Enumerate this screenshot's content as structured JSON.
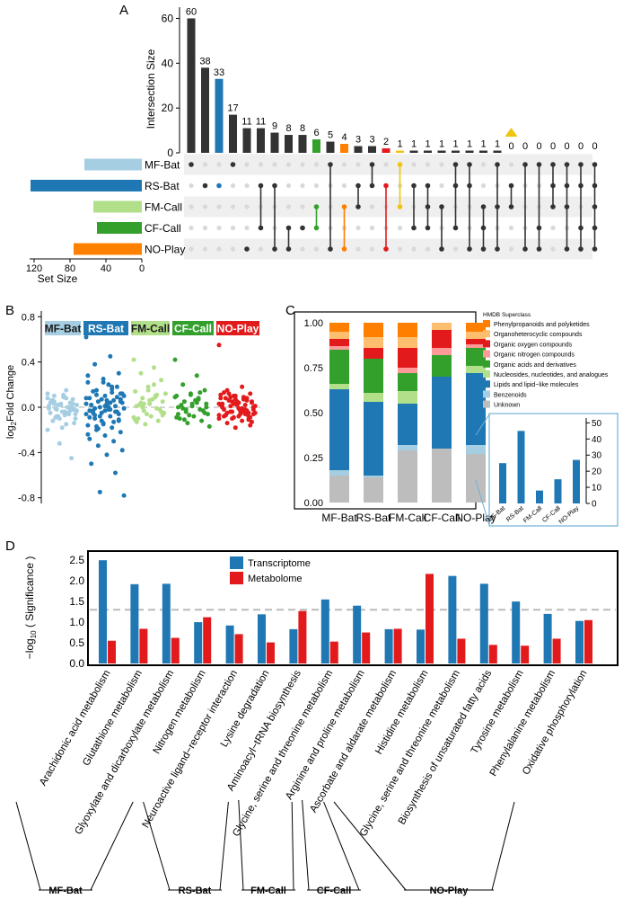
{
  "panels": {
    "a": "A",
    "b": "B",
    "c": "C",
    "d": "D"
  },
  "colors": {
    "bar_dark": "#333333",
    "mf_bat": "#a6cee3",
    "rs_bat": "#1f78b4",
    "fm_call": "#b2df8a",
    "cf_call": "#33a02c",
    "no_play": "#ff7f00",
    "highlight_red": "#e31a1c",
    "highlight_yellow": "#f1c40f",
    "dot_inactive": "#d9d9d9",
    "row_shade": "#efefef",
    "transcriptome": "#1f78b4",
    "metabolome": "#e31a1c",
    "threshold": "#bbbbbb"
  },
  "chart_data": [
    {
      "id": "upset",
      "type": "bar",
      "ylabel": "Intersection Size",
      "ylim": [
        0,
        65
      ],
      "yticks": [
        0,
        20,
        40,
        60
      ],
      "values": [
        60,
        38,
        33,
        17,
        11,
        11,
        9,
        8,
        8,
        6,
        5,
        4,
        3,
        3,
        2,
        1,
        1,
        1,
        1,
        1,
        1,
        1,
        1,
        0,
        0,
        0,
        0,
        0,
        0,
        0
      ],
      "value_labels": [
        "60",
        "38",
        "33",
        "17",
        "11",
        "11",
        "9",
        "8",
        "8",
        "6",
        "5",
        "4",
        "3",
        "3",
        "2",
        "1",
        "1",
        "1",
        "1",
        "1",
        "1",
        "1",
        "1",
        "0",
        "0",
        "0",
        "0",
        "0",
        "0",
        "0"
      ],
      "bar_colors": [
        "dark",
        "dark",
        "rs_bat",
        "dark",
        "dark",
        "dark",
        "dark",
        "dark",
        "dark",
        "cf_call",
        "dark",
        "no_play",
        "dark",
        "dark",
        "highlight_red",
        "highlight_yellow",
        "dark",
        "dark",
        "dark",
        "dark",
        "dark",
        "dark",
        "dark",
        "dark",
        "dark",
        "dark",
        "dark",
        "dark",
        "dark",
        "dark"
      ],
      "marker_index": 23,
      "sets": [
        "MF-Bat",
        "RS-Bat",
        "FM-Call",
        "CF-Call",
        "NO-Play"
      ],
      "set_sizes": [
        64,
        124,
        54,
        50,
        76
      ],
      "set_size_label": "Set Size",
      "set_size_ticks": [
        120,
        80,
        40,
        0
      ],
      "set_size_tick_labels": [
        "120",
        "80",
        "40",
        "0"
      ],
      "set_size_max": 130,
      "matrix": [
        [
          0
        ],
        [
          1
        ],
        [
          1
        ],
        [
          0
        ],
        [
          4
        ],
        [
          1,
          3
        ],
        [
          1,
          4
        ],
        [
          3,
          4
        ],
        [
          3
        ],
        [
          2,
          3
        ],
        [
          0,
          4
        ],
        [
          2,
          4
        ],
        [
          1,
          2
        ],
        [
          0,
          1
        ],
        [
          1,
          4
        ],
        [
          0,
          2
        ],
        [
          1,
          3
        ],
        [
          1,
          2,
          3
        ],
        [
          2,
          4
        ],
        [
          0,
          1,
          3
        ],
        [
          0,
          1,
          4
        ],
        [
          2,
          3,
          4
        ],
        [
          0,
          2,
          4
        ],
        [
          1,
          2
        ],
        [
          0,
          4
        ],
        [
          0,
          3,
          4
        ],
        [
          0,
          1,
          2
        ],
        [
          0,
          1,
          2,
          4
        ],
        [
          0,
          1,
          3,
          4
        ],
        [
          0,
          1,
          2,
          3,
          4
        ]
      ]
    },
    {
      "id": "foldchange",
      "type": "scatter",
      "ylabel": "log2 Fold Change",
      "ylim": [
        -0.85,
        0.85
      ],
      "yticks": [
        -0.8,
        -0.4,
        0.0,
        0.4,
        0.8
      ],
      "ytick_labels": [
        "-0.8",
        "-0.4",
        "0.0",
        "0.4",
        "0.8"
      ],
      "groups": [
        {
          "name": "MF-Bat",
          "color": "mf_bat",
          "values": [
            0.12,
            0.08,
            0.05,
            0.03,
            0.02,
            0.01,
            0.0,
            -0.01,
            -0.02,
            -0.04,
            -0.05,
            -0.06,
            -0.08,
            -0.1,
            0.09,
            0.06,
            0.04,
            0.02,
            -0.03,
            -0.07,
            -0.12,
            -0.45,
            -0.32,
            -0.2,
            0.15,
            0.1,
            0.07,
            0.03,
            -0.01,
            -0.05,
            -0.09,
            -0.14,
            -0.18,
            0.04,
            0.0,
            -0.02,
            -0.06,
            0.11,
            0.05,
            -0.03,
            -0.08,
            0.02,
            -0.04,
            0.06,
            0.0,
            -0.1,
            0.08,
            -0.15,
            0.03,
            -0.02
          ]
        },
        {
          "name": "RS-Bat",
          "color": "rs_bat",
          "values": [
            0.62,
            0.45,
            0.38,
            0.3,
            0.25,
            0.22,
            0.18,
            0.15,
            0.12,
            0.1,
            0.08,
            0.06,
            0.05,
            0.04,
            0.03,
            0.02,
            0.01,
            0.0,
            -0.01,
            -0.02,
            -0.03,
            -0.04,
            -0.05,
            -0.06,
            -0.08,
            -0.1,
            -0.12,
            -0.14,
            -0.16,
            -0.18,
            -0.2,
            -0.22,
            -0.25,
            -0.28,
            -0.3,
            -0.34,
            -0.38,
            -0.42,
            -0.5,
            -0.58,
            -0.75,
            -0.78,
            0.2,
            0.14,
            0.09,
            0.07,
            0.03,
            -0.02,
            -0.07,
            -0.11,
            -0.15,
            0.28,
            0.16,
            0.11,
            0.05,
            -0.03,
            -0.09,
            -0.13,
            -0.19,
            0.12,
            0.06,
            0.02,
            -0.04,
            -0.08,
            0.1,
            0.0,
            -0.05,
            0.18,
            -0.12,
            0.08,
            0.04,
            -0.01,
            -0.06,
            0.22,
            -0.24,
            0.13,
            -0.17,
            0.07,
            0.01,
            -0.03
          ]
        },
        {
          "name": "FM-Call",
          "color": "fm_call",
          "values": [
            0.42,
            0.35,
            0.3,
            0.24,
            0.18,
            0.14,
            0.1,
            0.08,
            0.05,
            0.03,
            0.01,
            -0.01,
            -0.03,
            -0.05,
            -0.08,
            -0.1,
            -0.12,
            -0.15,
            0.12,
            0.07,
            0.02,
            -0.02,
            -0.06,
            -0.09,
            0.2,
            0.04,
            -0.04,
            0.15,
            -0.11,
            0.09,
            0.0,
            -0.07,
            0.06,
            -0.13,
            0.11,
            0.03
          ]
        },
        {
          "name": "CF-Call",
          "color": "cf_call",
          "values": [
            0.42,
            0.28,
            0.2,
            0.15,
            0.12,
            0.1,
            0.08,
            0.05,
            0.03,
            0.01,
            0.0,
            -0.02,
            -0.04,
            -0.06,
            -0.08,
            -0.1,
            -0.12,
            -0.14,
            -0.17,
            0.06,
            0.02,
            -0.03,
            -0.07,
            0.09,
            0.04,
            -0.01,
            -0.05,
            0.11,
            -0.09,
            0.07,
            -0.11,
            0.0,
            0.03,
            -0.06,
            0.13,
            -0.02
          ]
        },
        {
          "name": "NO-Play",
          "color": "highlight_red",
          "values": [
            0.55,
            0.18,
            0.15,
            0.12,
            0.1,
            0.08,
            0.07,
            0.06,
            0.05,
            0.04,
            0.03,
            0.02,
            0.01,
            0.0,
            -0.01,
            -0.02,
            -0.03,
            -0.04,
            -0.05,
            -0.06,
            -0.07,
            -0.08,
            -0.09,
            -0.1,
            -0.12,
            -0.14,
            -0.16,
            -0.18,
            0.11,
            0.09,
            0.06,
            0.04,
            0.02,
            0.0,
            -0.02,
            -0.04,
            -0.06,
            -0.08,
            0.13,
            0.08,
            0.05,
            0.01,
            -0.03,
            -0.07,
            -0.11,
            0.1,
            0.03,
            -0.01,
            -0.05,
            -0.09,
            0.07,
            0.02,
            -0.04,
            0.12,
            -0.13,
            0.05,
            0.0,
            -0.06,
            0.09,
            -0.02,
            0.04,
            -0.08,
            0.06,
            -0.1,
            0.01,
            -0.03,
            0.08,
            -0.05,
            0.03,
            -0.07
          ]
        }
      ]
    },
    {
      "id": "superclass",
      "type": "bar",
      "stacked": true,
      "categories": [
        "MF-Bat",
        "RS-Bat",
        "FM-Call",
        "CF-Call",
        "NO-Play"
      ],
      "ylim": [
        0,
        1
      ],
      "yticks": [
        0,
        0.25,
        0.5,
        0.75,
        1.0
      ],
      "ytick_labels": [
        "0.00",
        "0.25",
        "0.50",
        "0.75",
        "1.00"
      ],
      "legend_title": "HMDB Superclass",
      "series": [
        {
          "name": "Unknown",
          "color": "#bdbdbd",
          "values": [
            0.15,
            0.14,
            0.29,
            0.3,
            0.27
          ]
        },
        {
          "name": "Benzenoids",
          "color": "#a6cee3",
          "values": [
            0.03,
            0.01,
            0.03,
            0.0,
            0.05
          ]
        },
        {
          "name": "Lipids and lipid−like molecules",
          "color": "#1f78b4",
          "values": [
            0.45,
            0.41,
            0.23,
            0.4,
            0.4
          ]
        },
        {
          "name": "Nucleosides, nucleotides, and analogues",
          "color": "#b2df8a",
          "values": [
            0.03,
            0.05,
            0.07,
            0.0,
            0.04
          ]
        },
        {
          "name": "Organic acids and derivatives",
          "color": "#33a02c",
          "values": [
            0.19,
            0.19,
            0.1,
            0.12,
            0.1
          ]
        },
        {
          "name": "Organic nitrogen compounds",
          "color": "#fb9a99",
          "values": [
            0.02,
            0.0,
            0.03,
            0.04,
            0.02
          ]
        },
        {
          "name": "Organic oxygen compounds",
          "color": "#e31a1c",
          "values": [
            0.04,
            0.06,
            0.11,
            0.1,
            0.03
          ]
        },
        {
          "name": "Organoheterocyclic compounds",
          "color": "#fdbf6f",
          "values": [
            0.04,
            0.06,
            0.06,
            0.04,
            0.04
          ]
        },
        {
          "name": "Phenylpropanoids and polyketides",
          "color": "#ff7f00",
          "values": [
            0.05,
            0.08,
            0.08,
            0.0,
            0.05
          ]
        }
      ],
      "legend_order": [
        "Phenylpropanoids and polyketides",
        "Organoheterocyclic compounds",
        "Organic oxygen compounds",
        "Organic nitrogen compounds",
        "Organic acids and derivatives",
        "Nucleosides, nucleotides, and analogues",
        "Lipids and lipid−like molecules",
        "Benzenoids",
        "Unknown"
      ]
    },
    {
      "id": "inset",
      "type": "bar",
      "categories": [
        "MF-Bat",
        "RS-Bat",
        "FM-Call",
        "CF-Call",
        "NO-Play"
      ],
      "values": [
        25,
        45,
        8,
        15,
        27
      ],
      "ylim": [
        0,
        53
      ],
      "yticks": [
        0,
        10,
        20,
        30,
        40,
        50
      ],
      "ytick_labels": [
        "0",
        "10",
        "20",
        "30",
        "40",
        "50"
      ],
      "color": "#1f78b4"
    },
    {
      "id": "pathway",
      "type": "bar",
      "ylabel": "−log10 ( Significance )",
      "ylim": [
        0,
        2.7
      ],
      "yticks": [
        0.0,
        0.5,
        1.0,
        1.5,
        2.0,
        2.5
      ],
      "ytick_labels": [
        "0.0",
        "0.5",
        "1.0",
        "1.5",
        "2.0",
        "2.5"
      ],
      "threshold": 1.3,
      "categories": [
        "Arachidonic acid metabolism",
        "Glutathione metabolism",
        "Glyoxylate and dicarboxylate metabolism",
        "Nitrogen metabolism",
        "Neuroactive ligand−receptor interaction",
        "Lysine degradation",
        "Aminoacyl−tRNA biosynthesis",
        "Glycine, serine and threonine metabolism",
        "Arginine and proline metabolism",
        "Ascorbate and aldarate metabolism",
        "Histidine metabolism",
        "Glycine, serine and threonine metabolism",
        "Biosynthesis of unsaturated fatty acids",
        "Tyrosine metabolism",
        "Phenylalanine metabolism",
        "Oxidative phosphorylation"
      ],
      "series": [
        {
          "name": "Transcriptome",
          "color": "transcriptome",
          "values": [
            2.5,
            1.92,
            1.93,
            1.0,
            0.92,
            1.19,
            0.83,
            1.55,
            1.4,
            0.83,
            0.82,
            2.12,
            1.93,
            1.5,
            1.2,
            1.03
          ]
        },
        {
          "name": "Metabolome",
          "color": "metabolome",
          "values": [
            0.55,
            0.84,
            0.62,
            1.12,
            0.71,
            0.51,
            1.27,
            0.53,
            0.75,
            0.84,
            2.17,
            0.6,
            0.45,
            0.43,
            0.6,
            1.05
          ]
        }
      ],
      "groups": [
        {
          "name": "MF-Bat",
          "start": 0,
          "end": 3
        },
        {
          "name": "RS-Bat",
          "start": 4,
          "end": 6
        },
        {
          "name": "FM-Call",
          "start": 7,
          "end": 8
        },
        {
          "name": "CF-Call",
          "start": 9,
          "end": 9
        },
        {
          "name": "NO-Play",
          "start": 10,
          "end": 15
        }
      ]
    }
  ]
}
